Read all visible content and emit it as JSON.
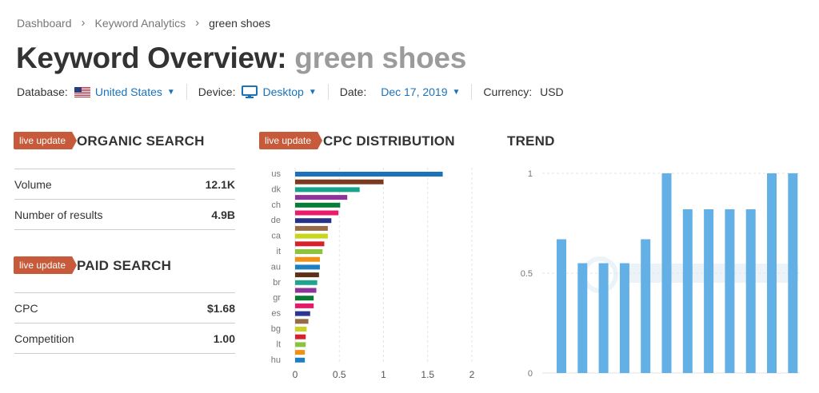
{
  "breadcrumb": {
    "items": [
      "Dashboard",
      "Keyword Analytics"
    ],
    "current": "green shoes"
  },
  "page": {
    "title_prefix": "Keyword Overview:",
    "keyword": "green shoes"
  },
  "filters": {
    "database_label": "Database:",
    "database_value": "United States",
    "device_label": "Device:",
    "device_value": "Desktop",
    "date_label": "Date:",
    "date_value": "Dec 17, 2019",
    "currency_label": "Currency:",
    "currency_value": "USD"
  },
  "badge_text": "live update",
  "organic": {
    "title": "ORGANIC SEARCH",
    "rows": [
      {
        "label": "Volume",
        "value": "12.1K"
      },
      {
        "label": "Number of results",
        "value": "4.9B"
      }
    ]
  },
  "paid": {
    "title": "PAID SEARCH",
    "rows": [
      {
        "label": "CPC",
        "value": "$1.68"
      },
      {
        "label": "Competition",
        "value": "1.00"
      }
    ]
  },
  "cpc_title": "CPC DISTRIBUTION",
  "trend_title": "TREND",
  "colors": {
    "accent": "#1a73ba",
    "badge": "#c65a3a",
    "trend_bar": "#62b0e5"
  },
  "chart_data": [
    {
      "type": "bar",
      "orientation": "horizontal",
      "title": "CPC DISTRIBUTION",
      "categories": [
        "us",
        "",
        "dk",
        "",
        "ch",
        "",
        "de",
        "",
        "ca",
        "",
        "it",
        "",
        "au",
        "",
        "br",
        "",
        "gr",
        "",
        "es",
        "",
        "bg",
        "",
        "lt",
        "",
        "hu"
      ],
      "values": [
        1.67,
        1.0,
        0.73,
        0.59,
        0.51,
        0.49,
        0.41,
        0.37,
        0.37,
        0.33,
        0.31,
        0.28,
        0.28,
        0.27,
        0.25,
        0.24,
        0.21,
        0.21,
        0.17,
        0.15,
        0.13,
        0.12,
        0.12,
        0.11,
        0.11
      ],
      "bar_colors": [
        "#1a73ba",
        "#7b3a1e",
        "#16a38c",
        "#8e3499",
        "#087d36",
        "#ea1c6a",
        "#283189",
        "#9a6a44",
        "#c8d61c",
        "#d5222d",
        "#8cc43c",
        "#ef9116",
        "#1c7fc1",
        "#5e3016",
        "#1da58f",
        "#8e3499",
        "#0b7a35",
        "#e21c6a",
        "#2c3591",
        "#946b45",
        "#c9d21c",
        "#d5222d",
        "#8ac43e",
        "#ef9116",
        "#1c7fc1"
      ],
      "xlim": [
        0,
        2
      ],
      "xticks": [
        "0",
        "0.5",
        "1",
        "1.5",
        "2"
      ]
    },
    {
      "type": "bar",
      "title": "TREND",
      "values": [
        0.67,
        0.55,
        0.55,
        0.55,
        0.67,
        1.0,
        0.82,
        0.82,
        0.82,
        0.82,
        1.0,
        1.0
      ],
      "ylim": [
        0,
        1
      ],
      "yticks": [
        "1",
        "0.5",
        "0"
      ]
    }
  ]
}
